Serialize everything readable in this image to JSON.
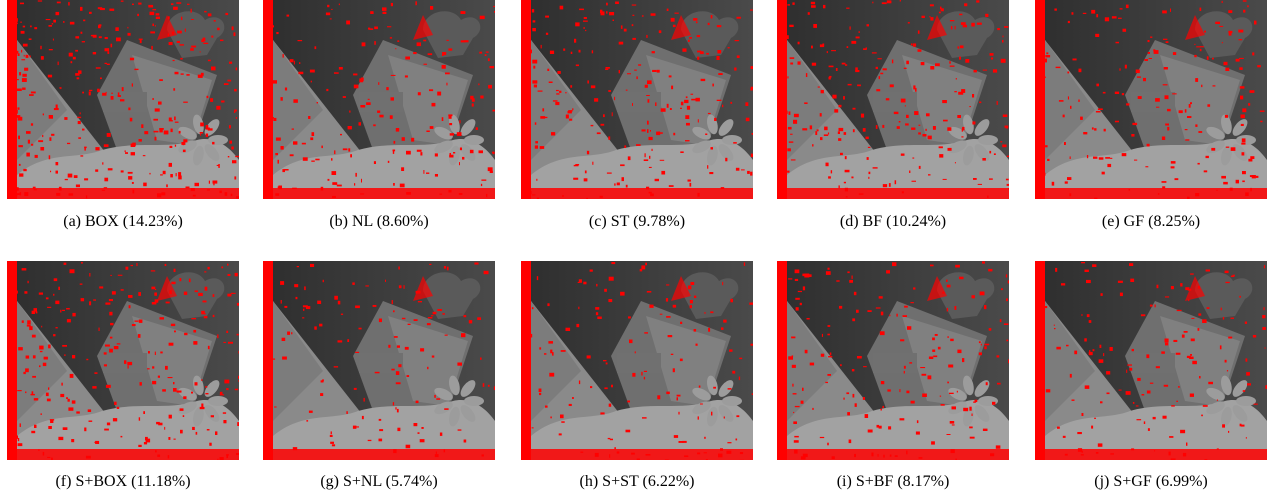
{
  "figure": {
    "rows": [
      {
        "panels": [
          {
            "label": "(a)",
            "method": "BOX",
            "error": "(14.23%)",
            "error_pct": 14.23
          },
          {
            "label": "(b)",
            "method": "NL",
            "error": "(8.60%)",
            "error_pct": 8.6
          },
          {
            "label": "(c)",
            "method": "ST",
            "error": "(9.78%)",
            "error_pct": 9.78
          },
          {
            "label": "(d)",
            "method": "BF",
            "error": "(10.24%)",
            "error_pct": 10.24
          },
          {
            "label": "(e)",
            "method": "GF",
            "error": "(8.25%)",
            "error_pct": 8.25
          }
        ]
      },
      {
        "panels": [
          {
            "label": "(f)",
            "method": "S+BOX",
            "error": "(11.18%)",
            "error_pct": 11.18
          },
          {
            "label": "(g)",
            "method": "S+NL",
            "error": "(5.74%)",
            "error_pct": 5.74
          },
          {
            "label": "(h)",
            "method": "S+ST",
            "error": "(6.22%)",
            "error_pct": 6.22
          },
          {
            "label": "(i)",
            "method": "S+BF",
            "error": "(8.17%)",
            "error_pct": 8.17
          },
          {
            "label": "(j)",
            "method": "S+GF",
            "error": "(6.99%)",
            "error_pct": 6.99
          }
        ]
      }
    ],
    "colors": {
      "error_pixels": "#ff0000",
      "background_far": "#3a3a3a",
      "mid": "#6e6e6e",
      "near": "#9a9a9a"
    }
  }
}
